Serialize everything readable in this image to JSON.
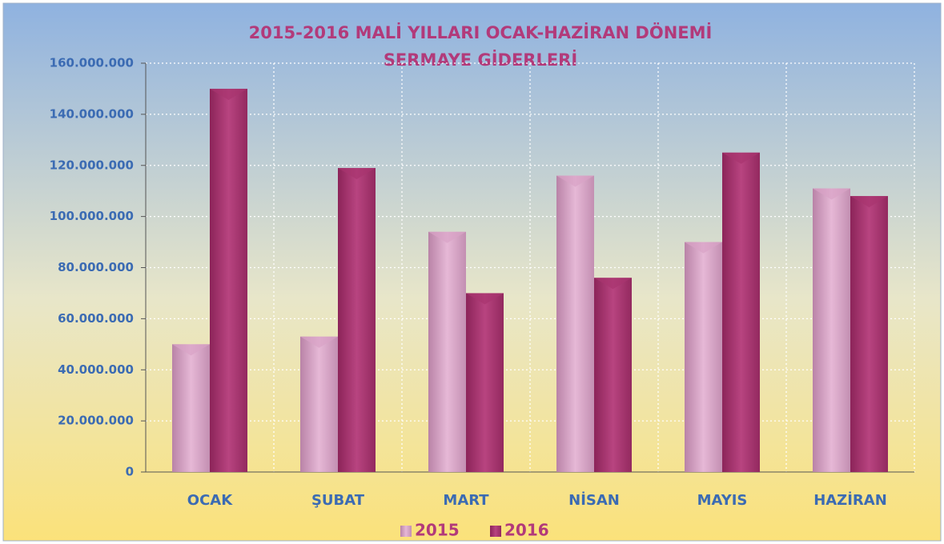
{
  "chart_data": {
    "type": "bar",
    "title": "2015-2016  MALİ YILLARI OCAK-HAZİRAN DÖNEMİ",
    "subtitle": "SERMAYE GİDERLERİ",
    "categories": [
      "OCAK",
      "ŞUBAT",
      "MART",
      "NİSAN",
      "MAYIS",
      "HAZİRAN"
    ],
    "series": [
      {
        "name": "2015",
        "color": "#d8a3c6",
        "values": [
          50000000,
          53000000,
          94000000,
          116000000,
          90000000,
          111000000
        ]
      },
      {
        "name": "2016",
        "color": "#a8346f",
        "values": [
          150000000,
          119000000,
          70000000,
          76000000,
          125000000,
          108000000
        ]
      }
    ],
    "ylim": [
      0,
      160000000
    ],
    "yticks": [
      0,
      {
        "value": 20000000,
        "label": "20.000.000"
      },
      {
        "value": 40000000,
        "label": "40.000.000"
      },
      {
        "value": 60000000,
        "label": "60.000.000"
      },
      {
        "value": 80000000,
        "label": "80.000.000"
      },
      {
        "value": 100000000,
        "label": "100.000.000"
      },
      {
        "value": 120000000,
        "label": "120.000.000"
      },
      {
        "value": 140000000,
        "label": "140.000.000"
      },
      {
        "value": 160000000,
        "label": "160.000.000"
      }
    ],
    "grid": true,
    "legend": "bottom"
  }
}
